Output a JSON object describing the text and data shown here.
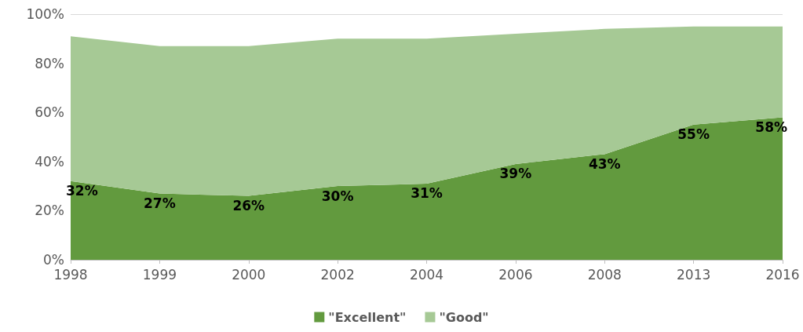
{
  "chart_data": {
    "type": "area",
    "stacked": true,
    "categories": [
      "1998",
      "1999",
      "2000",
      "2002",
      "2004",
      "2006",
      "2008",
      "2013",
      "2016"
    ],
    "series": [
      {
        "name": "\"Excellent\"",
        "color": "#629a3e",
        "values": [
          32,
          27,
          26,
          30,
          31,
          39,
          43,
          55,
          58
        ],
        "value_labels": [
          "32%",
          "27%",
          "26%",
          "30%",
          "31%",
          "39%",
          "43%",
          "55%",
          "58%"
        ]
      },
      {
        "name": "\"Good\"",
        "color": "#a6c995",
        "values": [
          59,
          60,
          61,
          60,
          59,
          53,
          51,
          40,
          37
        ]
      }
    ],
    "ylim": [
      0,
      100
    ],
    "yticks": [
      {
        "value": 0,
        "label": "0%"
      },
      {
        "value": 20,
        "label": "20%"
      },
      {
        "value": 40,
        "label": "40%"
      },
      {
        "value": 60,
        "label": "60%"
      },
      {
        "value": 80,
        "label": "80%"
      },
      {
        "value": 100,
        "label": "100%"
      }
    ],
    "grid": "y",
    "legend": "bottom",
    "marker": "none"
  }
}
